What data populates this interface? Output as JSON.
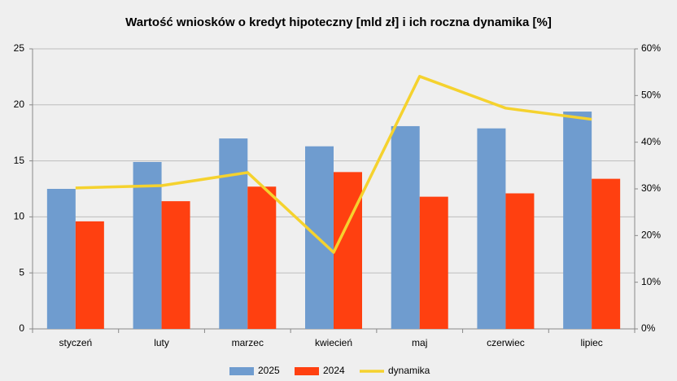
{
  "chart_data": {
    "type": "bar",
    "title": "Wartość wniosków o kredyt hipoteczny [mld zł] i ich roczna dynamika [%]",
    "categories": [
      "styczeń",
      "luty",
      "marzec",
      "kwiecień",
      "maj",
      "czerwiec",
      "lipiec"
    ],
    "series": [
      {
        "name": "2025",
        "color": "#6f9ccf",
        "values": [
          12.5,
          14.9,
          17.0,
          16.3,
          18.1,
          17.9,
          19.4
        ]
      },
      {
        "name": "2024",
        "color": "#ff4010",
        "values": [
          9.6,
          11.4,
          12.7,
          14.0,
          11.8,
          12.1,
          13.4
        ]
      },
      {
        "name": "dynamika",
        "color": "#f5d22e",
        "type": "line",
        "axis": "y2",
        "values": [
          30.2,
          30.7,
          33.5,
          16.4,
          54.1,
          47.3,
          44.9
        ]
      }
    ],
    "ylim": [
      0,
      25
    ],
    "yticks": [
      0,
      5,
      10,
      15,
      20,
      25
    ],
    "y2lim": [
      0,
      60
    ],
    "y2ticks": [
      {
        "value": 0,
        "label": "0%"
      },
      {
        "value": 10,
        "label": "10%"
      },
      {
        "value": 20,
        "label": "20%"
      },
      {
        "value": 30,
        "label": "30%"
      },
      {
        "value": 40,
        "label": "40%"
      },
      {
        "value": 50,
        "label": "50%"
      },
      {
        "value": 60,
        "label": "60%"
      }
    ],
    "grid": true,
    "legend": "bottom"
  }
}
